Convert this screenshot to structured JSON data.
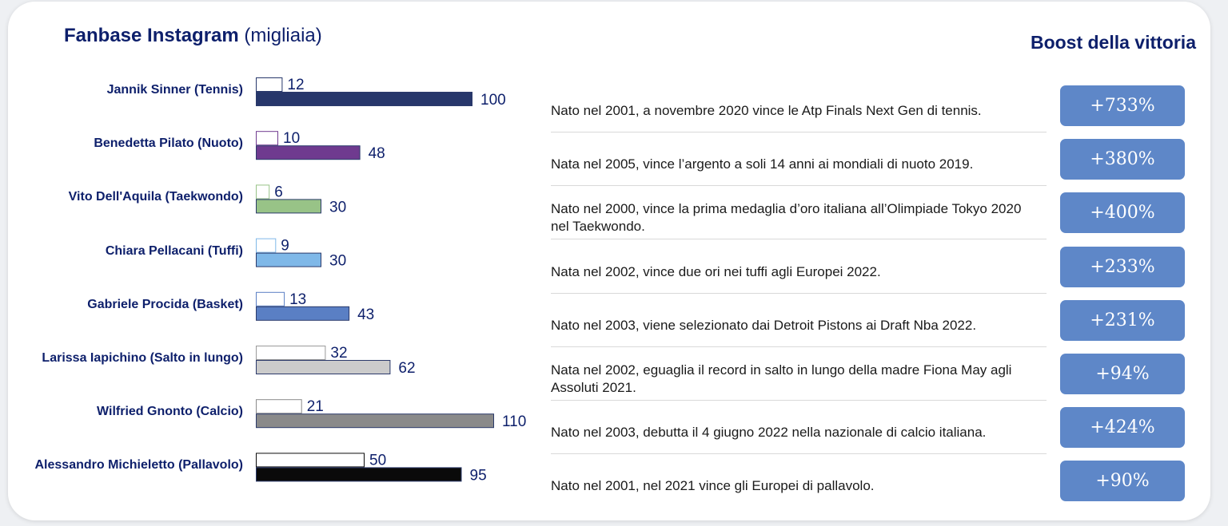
{
  "title": {
    "bold": "Fanbase Instagram",
    "unit": "(migliaia)"
  },
  "boost_title": "Boost della vittoria",
  "rows": [
    {
      "athlete": "Jannik Sinner (Tennis)",
      "before": 12,
      "after": 100,
      "color": "#27376b",
      "description": "Nato nel 2001, a novembre 2020 vince le Atp Finals Next Gen di tennis.",
      "boost": "+733%"
    },
    {
      "athlete": "Benedetta Pilato (Nuoto)",
      "before": 10,
      "after": 48,
      "color": "#6f3a8f",
      "description": "Nata nel 2005, vince l’argento a soli 14 anni ai mondiali di nuoto 2019.",
      "boost": "+380%"
    },
    {
      "athlete": "Vito Dell'Aquila (Taekwondo)",
      "before": 6,
      "after": 30,
      "color": "#98c387",
      "description": "Nato nel 2000, vince la prima medaglia d’oro italiana all’Olimpiade Tokyo 2020 nel Taekwondo.",
      "boost": "+400%"
    },
    {
      "athlete": "Chiara Pellacani (Tuffi)",
      "before": 9,
      "after": 30,
      "color": "#7fb8e8",
      "description": "Nata nel 2002, vince due ori nei tuffi agli Europei 2022.",
      "boost": "+233%"
    },
    {
      "athlete": "Gabriele Procida (Basket)",
      "before": 13,
      "after": 43,
      "color": "#5a7fc4",
      "description": "Nato nel 2003, viene selezionato dai Detroit Pistons ai Draft Nba 2022.",
      "boost": "+231%"
    },
    {
      "athlete": "Larissa Iapichino (Salto in lungo)",
      "before": 32,
      "after": 62,
      "color": "#cbcbcb",
      "description": "Nata nel 2002, eguaglia il record in salto in lungo della madre Fiona May agli Assoluti 2021.",
      "boost": "+94%"
    },
    {
      "athlete": "Wilfried Gnonto (Calcio)",
      "before": 21,
      "after": 110,
      "color": "#8a8a8a",
      "description": "Nato nel 2003, debutta il 4 giugno 2022 nella nazionale di calcio italiana.",
      "boost": "+424%"
    },
    {
      "athlete": "Alessandro Michieletto (Pallavolo)",
      "before": 50,
      "after": 95,
      "color": "#0a0a0a",
      "description": "Nato nel 2001, nel 2021 vince gli Europei di pallavolo.",
      "boost": "+90%"
    }
  ],
  "chart_data": {
    "type": "bar",
    "orientation": "horizontal",
    "title": "Fanbase Instagram (migliaia)",
    "categories": [
      "Jannik Sinner (Tennis)",
      "Benedetta Pilato (Nuoto)",
      "Vito Dell'Aquila (Taekwondo)",
      "Chiara Pellacani (Tuffi)",
      "Gabriele Procida (Basket)",
      "Larissa Iapichino (Salto in lungo)",
      "Wilfried Gnonto (Calcio)",
      "Alessandro Michieletto (Pallavolo)"
    ],
    "series": [
      {
        "values": [
          12,
          10,
          6,
          9,
          13,
          32,
          21,
          50
        ],
        "fill": "white, outlined"
      },
      {
        "values": [
          100,
          48,
          30,
          30,
          43,
          62,
          110,
          95
        ],
        "fill": "athlete color"
      }
    ],
    "xlim": [
      0,
      110
    ],
    "grid": false
  }
}
